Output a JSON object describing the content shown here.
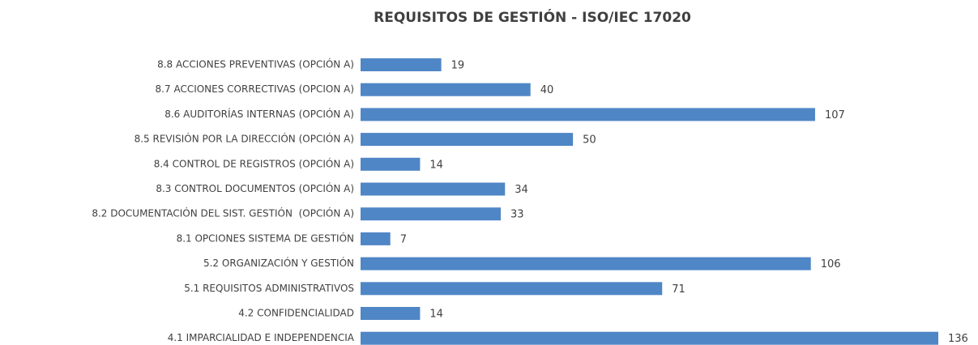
{
  "chart_data": {
    "type": "barh",
    "title": "REQUISITOS DE GESTIÓN - ISO/IEC 17020",
    "categories": [
      "8.8 ACCIONES PREVENTIVAS (OPCIÓN A)",
      "8.7 ACCIONES CORRECTIVAS (OPCION A)",
      "8.6 AUDITORÍAS INTERNAS (OPCIÓN A)",
      "8.5 REVISIÓN POR LA DIRECCIÓN (OPCIÓN A)",
      "8.4 CONTROL DE REGISTROS (OPCIÓN A)",
      "8.3 CONTROL DOCUMENTOS (OPCIÓN A)",
      "8.2 DOCUMENTACIÓN DEL SIST. GESTIÓN  (OPCIÓN A)",
      "8.1 OPCIONES SISTEMA DE GESTIÓN",
      "5.2 ORGANIZACIÓN Y GESTIÓN",
      "5.1 REQUISITOS ADMINISTRATIVOS",
      "4.2 CONFIDENCIALIDAD",
      "4.1 IMPARCIALIDAD E INDEPENDENCIA"
    ],
    "values": [
      19,
      40,
      107,
      50,
      14,
      34,
      33,
      7,
      106,
      71,
      14,
      136
    ],
    "color": "#4f86c6"
  }
}
